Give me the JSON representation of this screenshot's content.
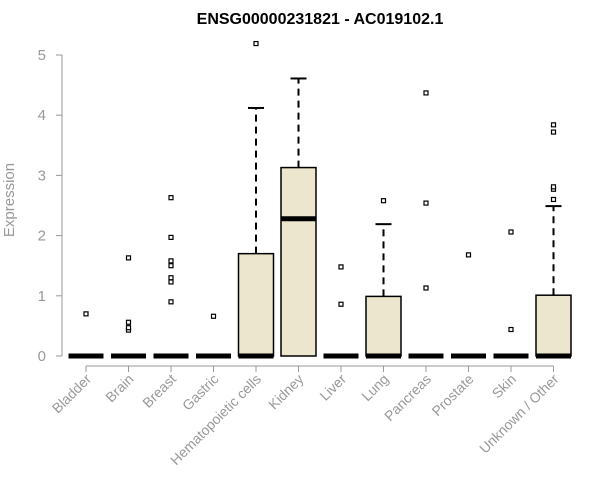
{
  "chart_data": {
    "type": "boxplot",
    "title": "ENSG00000231821 - AC019102.1",
    "xlabel": "",
    "ylabel": "Expression",
    "ylim": [
      0,
      5.2
    ],
    "yticks": [
      "0",
      "1",
      "2",
      "3",
      "4",
      "5"
    ],
    "box_fill": "#ede6cf",
    "grid": false,
    "categories": [
      "Bladder",
      "Brain",
      "Breast",
      "Gastric",
      "Hematopoietic cells",
      "Kidney",
      "Liver",
      "Lung",
      "Pancreas",
      "Prostate",
      "Skin",
      "Unknown / Other"
    ],
    "boxes": [
      {
        "min": 0,
        "q1": 0,
        "median": 0,
        "q3": 0,
        "max": 0,
        "outliers": [
          0.7
        ]
      },
      {
        "min": 0,
        "q1": 0,
        "median": 0,
        "q3": 0,
        "max": 0,
        "outliers": [
          0.43,
          0.47,
          0.56,
          1.63
        ]
      },
      {
        "min": 0,
        "q1": 0,
        "median": 0,
        "q3": 0,
        "max": 0,
        "outliers": [
          0.9,
          1.23,
          1.3,
          1.5,
          1.58,
          1.97,
          2.63
        ]
      },
      {
        "min": 0,
        "q1": 0,
        "median": 0,
        "q3": 0,
        "max": 0,
        "outliers": [
          0.66
        ]
      },
      {
        "min": 0,
        "q1": 0,
        "median": 0,
        "q3": 1.7,
        "max": 4.12,
        "outliers": [
          5.19
        ]
      },
      {
        "min": 0,
        "q1": 0,
        "median": 2.28,
        "q3": 3.13,
        "max": 4.61,
        "outliers": []
      },
      {
        "min": 0,
        "q1": 0,
        "median": 0,
        "q3": 0,
        "max": 0,
        "outliers": [
          0.86,
          1.48
        ]
      },
      {
        "min": 0,
        "q1": 0,
        "median": 0,
        "q3": 0.99,
        "max": 2.19,
        "outliers": [
          2.58
        ]
      },
      {
        "min": 0,
        "q1": 0,
        "median": 0,
        "q3": 0,
        "max": 0,
        "outliers": [
          1.13,
          2.54,
          4.37
        ]
      },
      {
        "min": 0,
        "q1": 0,
        "median": 0,
        "q3": 0,
        "max": 0,
        "outliers": [
          1.68
        ]
      },
      {
        "min": 0,
        "q1": 0,
        "median": 0,
        "q3": 0,
        "max": 0,
        "outliers": [
          0.44,
          2.06
        ]
      },
      {
        "min": 0,
        "q1": 0,
        "median": 0,
        "q3": 1.01,
        "max": 2.49,
        "outliers": [
          2.6,
          2.77,
          2.81,
          3.72,
          3.84
        ]
      }
    ]
  }
}
